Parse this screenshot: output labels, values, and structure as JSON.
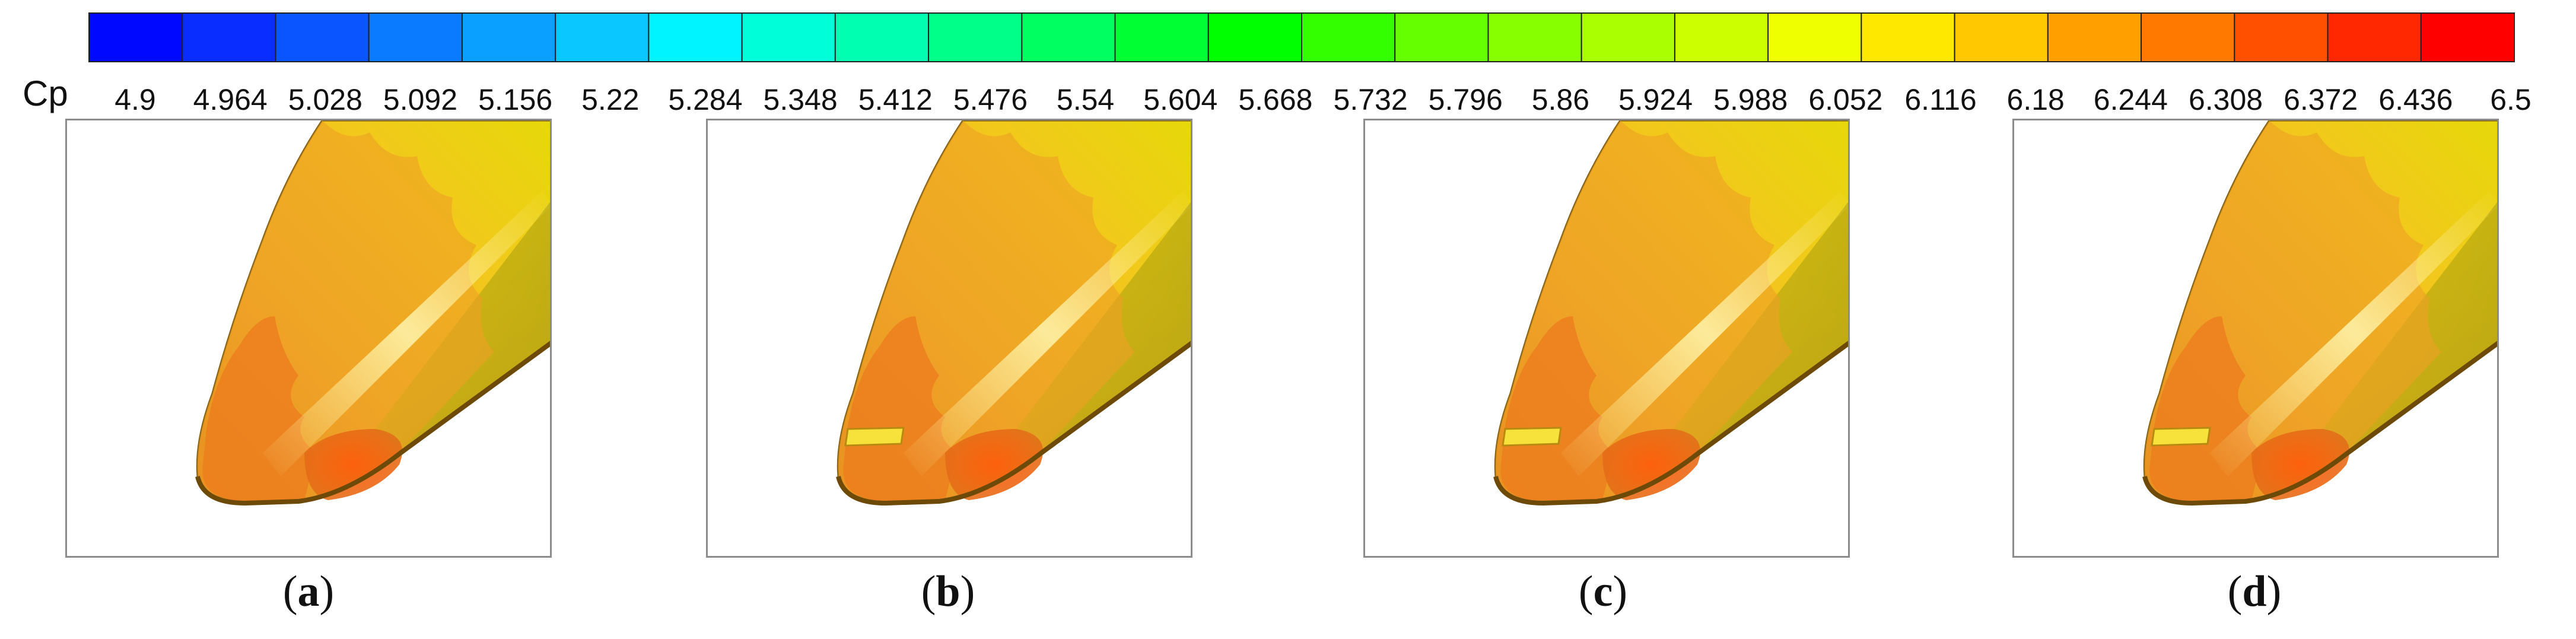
{
  "chart_data": {
    "type": "heatmap",
    "variable_label": "Cp",
    "colorbar": {
      "min": 4.9,
      "max": 6.5,
      "tick_labels": [
        "4.9",
        "4.964",
        "5.028",
        "5.092",
        "5.156",
        "5.22",
        "5.284",
        "5.348",
        "5.412",
        "5.476",
        "5.54",
        "5.604",
        "5.668",
        "5.732",
        "5.796",
        "5.86",
        "5.924",
        "5.988",
        "6.052",
        "6.116",
        "6.18",
        "6.244",
        "6.308",
        "6.372",
        "6.436",
        "6.5"
      ],
      "colors": [
        "#0008ff",
        "#0a2dff",
        "#0a55ff",
        "#0a7bff",
        "#0aa0ff",
        "#0ac8ff",
        "#00f4ff",
        "#00ffd8",
        "#00ffb0",
        "#00ff88",
        "#00ff60",
        "#00ff33",
        "#00ff00",
        "#33ff00",
        "#66ff00",
        "#88ff00",
        "#aaff00",
        "#ccff00",
        "#f0ff00",
        "#ffe800",
        "#ffc800",
        "#ffa000",
        "#ff7800",
        "#ff5000",
        "#ff2800",
        "#ff0000"
      ]
    },
    "panels": [
      {
        "label": "a",
        "open": "(",
        "close": ")",
        "has_band": false
      },
      {
        "label": "b",
        "open": "(",
        "close": ")",
        "has_band": true
      },
      {
        "label": "c",
        "open": "(",
        "close": ")",
        "has_band": true
      },
      {
        "label": "d",
        "open": "(",
        "close": ")",
        "has_band": true
      }
    ]
  }
}
